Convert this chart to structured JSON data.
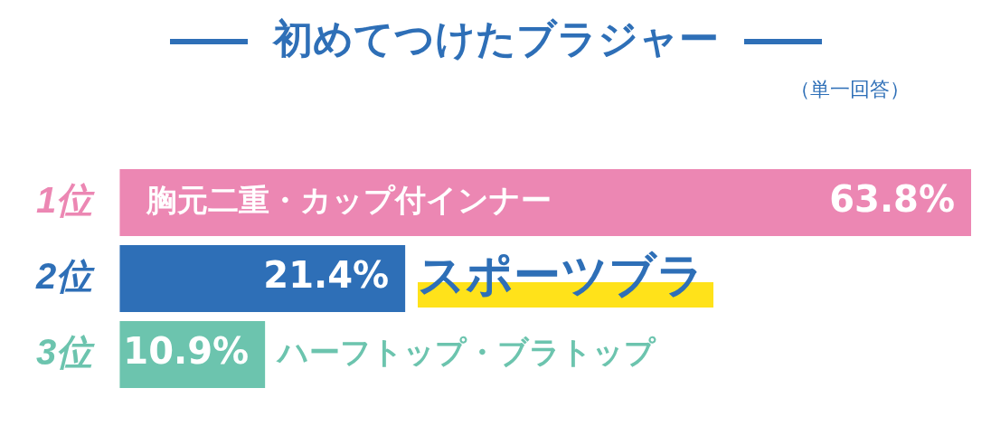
{
  "chart_data": {
    "type": "bar",
    "orientation": "horizontal",
    "title": "初めてつけたブラジャー",
    "subtitle": "（単一回答）",
    "categories": [
      "1位",
      "2位",
      "3位"
    ],
    "values": [
      63.8,
      21.4,
      10.9
    ],
    "colors": [
      "#ec87b3",
      "#2e6fb7",
      "#6cc4ae"
    ],
    "value_labels": [
      "63.8%",
      "21.4%",
      "10.9%"
    ],
    "tick_labels": "y",
    "legend": false,
    "annotations": [
      {
        "text": "胸元二重・カップ付インナー",
        "x": 2,
        "y": "1位"
      },
      {
        "text": "スポーツブラ",
        "x": 21.4,
        "y": "2位"
      },
      {
        "text": "ハーフトップ・ブラトップ",
        "x": 10.9,
        "y": "3位"
      }
    ]
  }
}
